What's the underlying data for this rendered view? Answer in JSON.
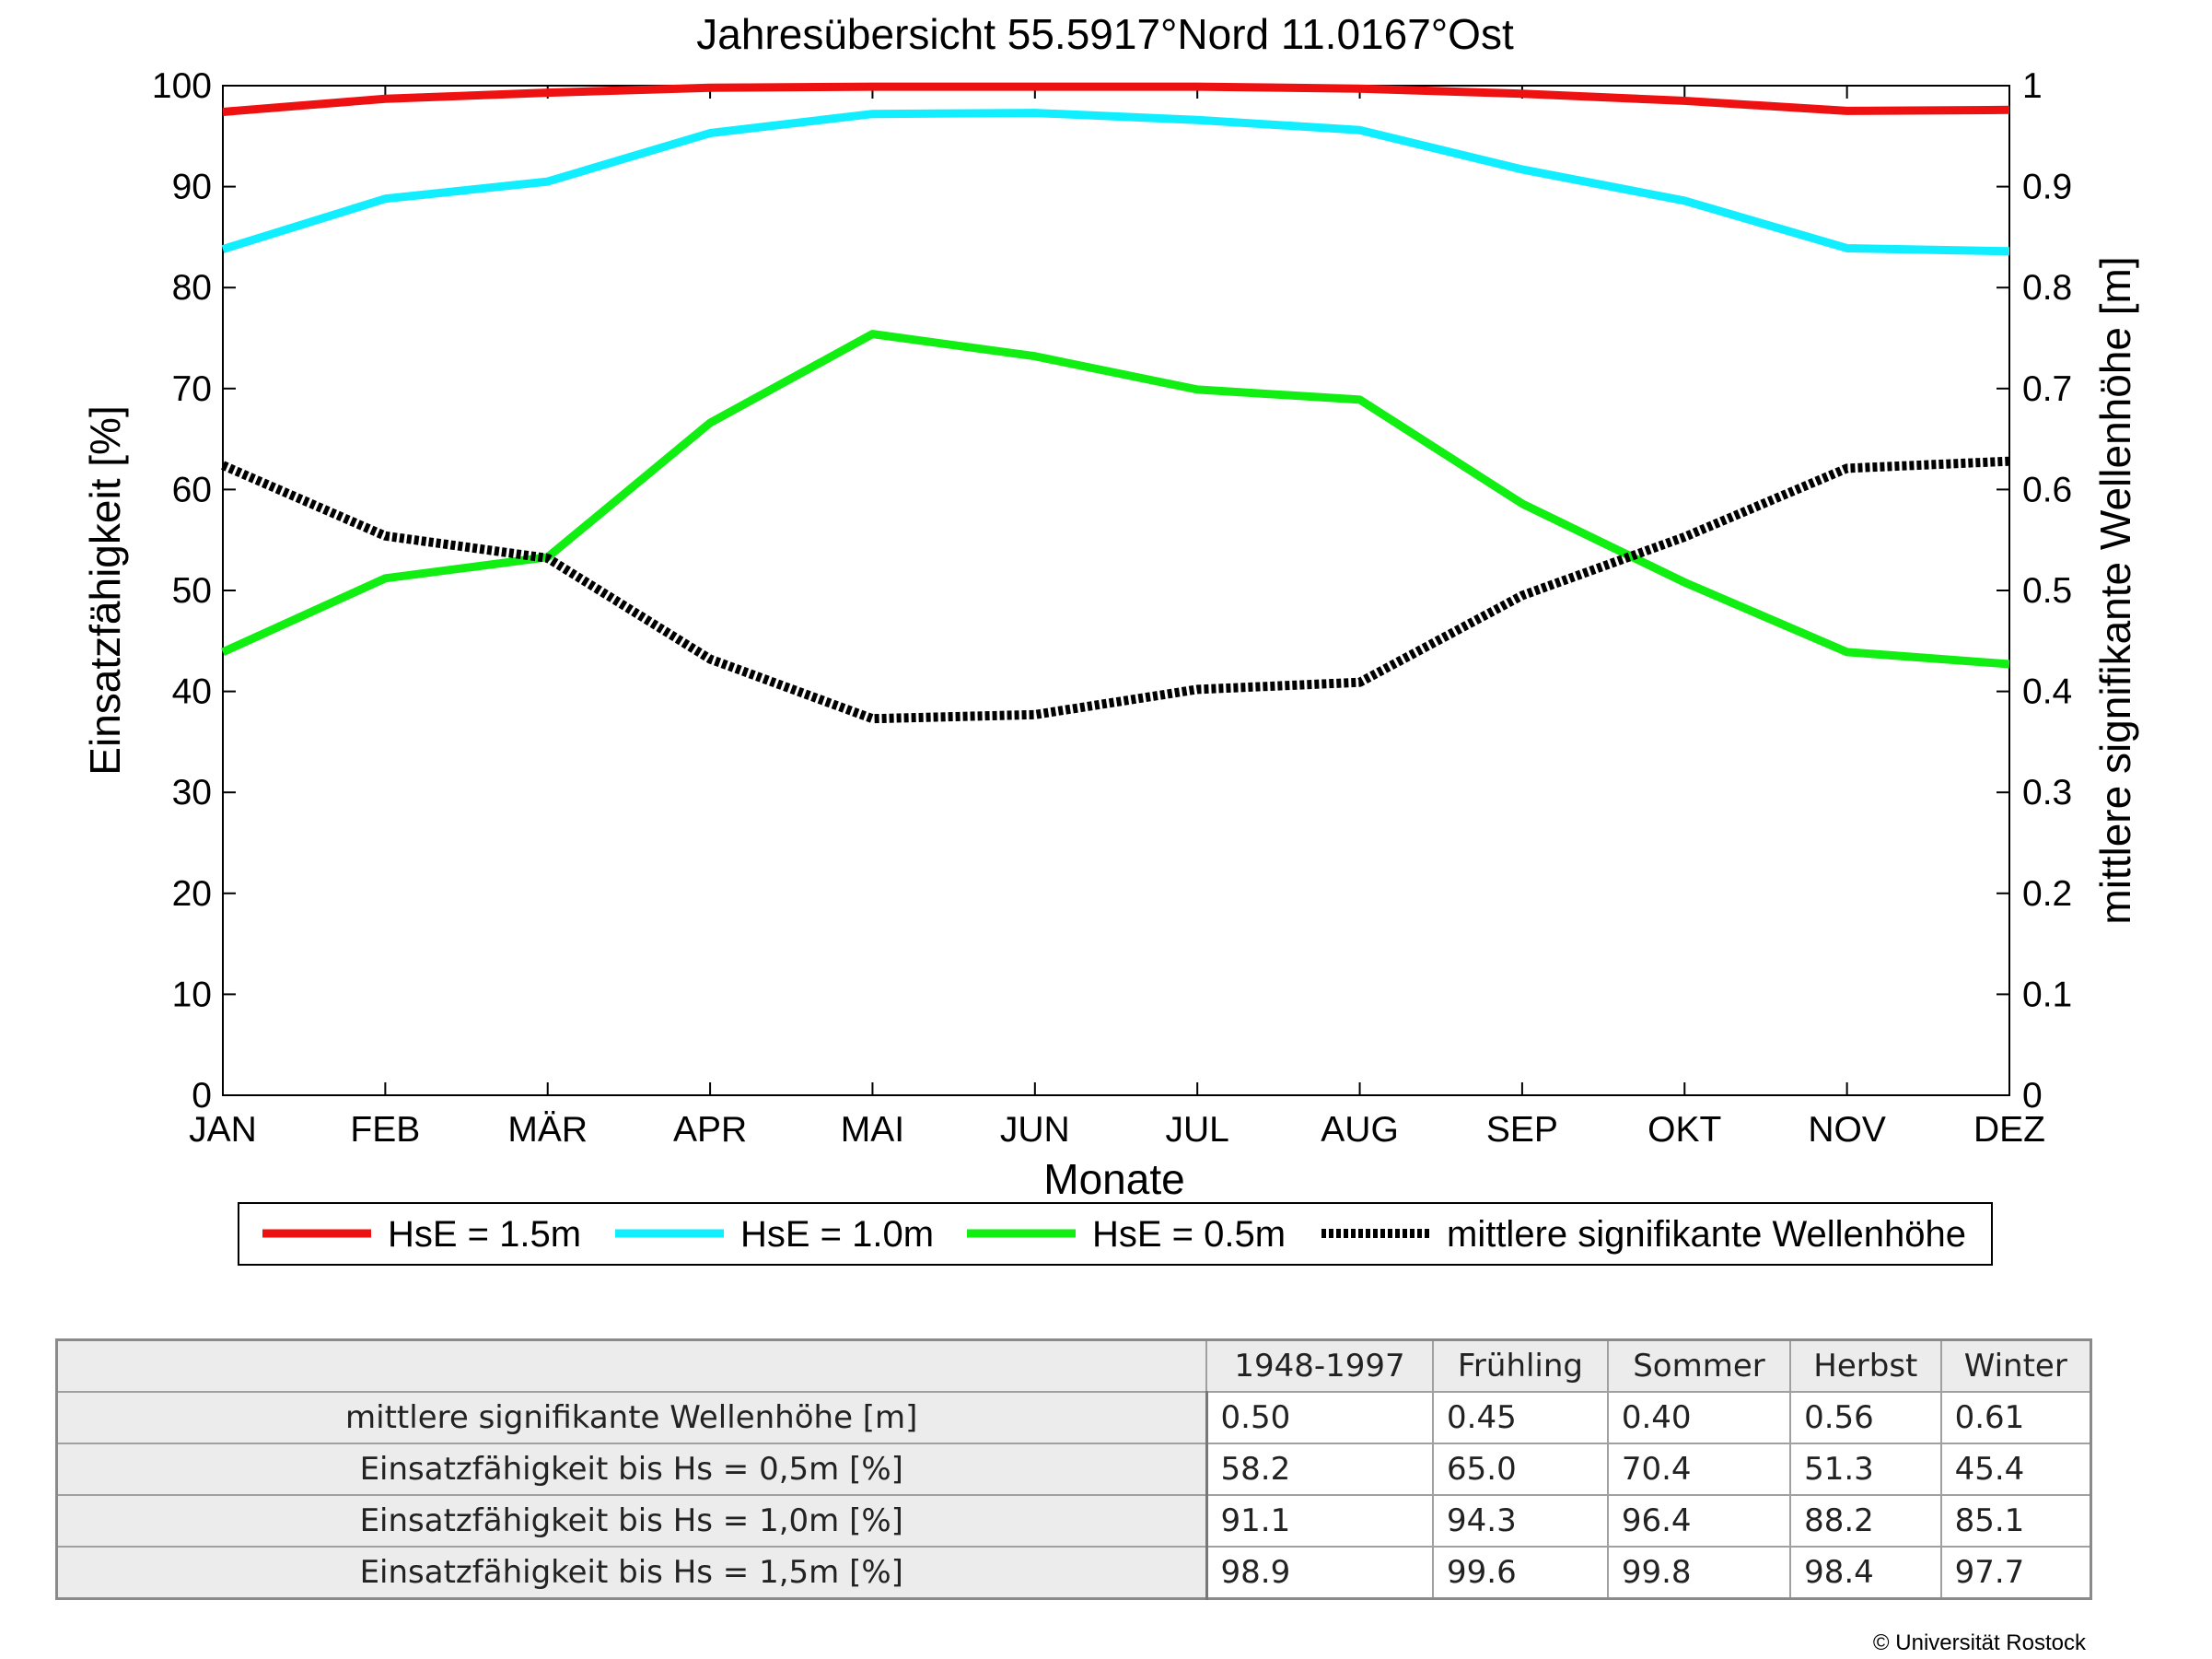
{
  "chart_data": {
    "type": "line",
    "title": "Jahresübersicht  55.5917°Nord  11.0167°Ost",
    "xlabel": "Monate",
    "ylabel": "Einsatzfähigkeit [%]",
    "ylabel_right": "mittlere signifikante Wellenhöhe [m]",
    "categories": [
      "JAN",
      "FEB",
      "MÄR",
      "APR",
      "MAI",
      "JUN",
      "JUL",
      "AUG",
      "SEP",
      "OKT",
      "NOV",
      "DEZ"
    ],
    "ylim": [
      0,
      100
    ],
    "ylim_right": [
      0,
      1
    ],
    "yticks": [
      "0",
      "10",
      "20",
      "30",
      "40",
      "50",
      "60",
      "70",
      "80",
      "90",
      "100"
    ],
    "yticks_right": [
      "0",
      "0.1",
      "0.2",
      "0.3",
      "0.4",
      "0.5",
      "0.6",
      "0.7",
      "0.8",
      "0.9",
      "1"
    ],
    "grid": false,
    "legend_position": "bottom",
    "series": [
      {
        "name": "HsE = 1.5m",
        "axis": "left",
        "color": "#ee1111",
        "style": "solid",
        "values": [
          97.4,
          98.7,
          99.3,
          99.8,
          99.9,
          99.9,
          99.9,
          99.7,
          99.2,
          98.5,
          97.5,
          97.6
        ]
      },
      {
        "name": "HsE = 1.0m",
        "axis": "left",
        "color": "#11eeff",
        "style": "solid",
        "values": [
          83.8,
          88.8,
          90.5,
          95.3,
          97.2,
          97.3,
          96.6,
          95.6,
          91.7,
          88.6,
          83.9,
          83.6
        ]
      },
      {
        "name": "HsE = 0.5m",
        "axis": "left",
        "color": "#11ee11",
        "style": "solid",
        "values": [
          43.9,
          51.2,
          53.3,
          66.6,
          75.4,
          73.2,
          69.9,
          68.9,
          58.6,
          50.8,
          43.9,
          42.7
        ]
      },
      {
        "name": "mittlere signifikante Wellenhöhe",
        "axis": "right",
        "color": "#000000",
        "style": "dotted",
        "values": [
          0.624,
          0.554,
          0.532,
          0.432,
          0.373,
          0.377,
          0.402,
          0.409,
          0.495,
          0.553,
          0.621,
          0.628
        ]
      }
    ]
  },
  "table": {
    "headers": [
      "1948-1997",
      "Frühling",
      "Sommer",
      "Herbst",
      "Winter"
    ],
    "rows": [
      {
        "label": "mittlere signifikante Wellenhöhe [m]",
        "values": [
          "0.50",
          "0.45",
          "0.40",
          "0.56",
          "0.61"
        ]
      },
      {
        "label": "Einsatzfähigkeit bis Hs = 0,5m [%]",
        "values": [
          "58.2",
          "65.0",
          "70.4",
          "51.3",
          "45.4"
        ]
      },
      {
        "label": "Einsatzfähigkeit bis Hs = 1,0m [%]",
        "values": [
          "91.1",
          "94.3",
          "96.4",
          "88.2",
          "85.1"
        ]
      },
      {
        "label": "Einsatzfähigkeit bis Hs = 1,5m [%]",
        "values": [
          "98.9",
          "99.6",
          "99.8",
          "98.4",
          "97.7"
        ]
      }
    ]
  },
  "copyright": "© Universität Rostock"
}
